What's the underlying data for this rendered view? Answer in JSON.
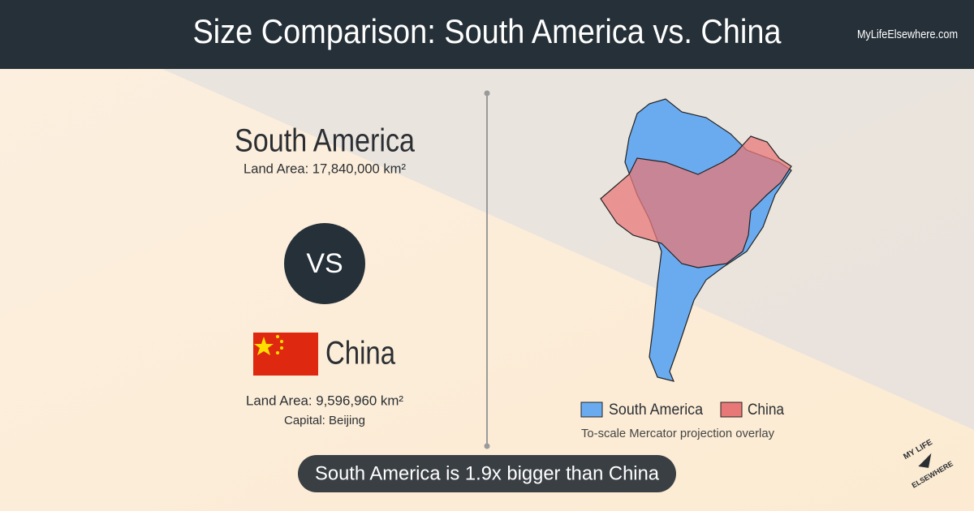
{
  "header": {
    "title": "Size Comparison: South America vs. China",
    "site": "MyLifeElsewhere.com"
  },
  "first": {
    "name": "South America",
    "area": "Land Area: 17,840,000 km²"
  },
  "vs": "VS",
  "second": {
    "name": "China",
    "area": "Land Area: 9,596,960 km²",
    "capital": "Capital: Beijing"
  },
  "legend": [
    "South America",
    "China"
  ],
  "caption": "To-scale Mercator projection overlay",
  "summary": "South America is 1.9x bigger than China",
  "logo": {
    "top": "MY LIFE",
    "bottom": "ELSEWHERE"
  }
}
